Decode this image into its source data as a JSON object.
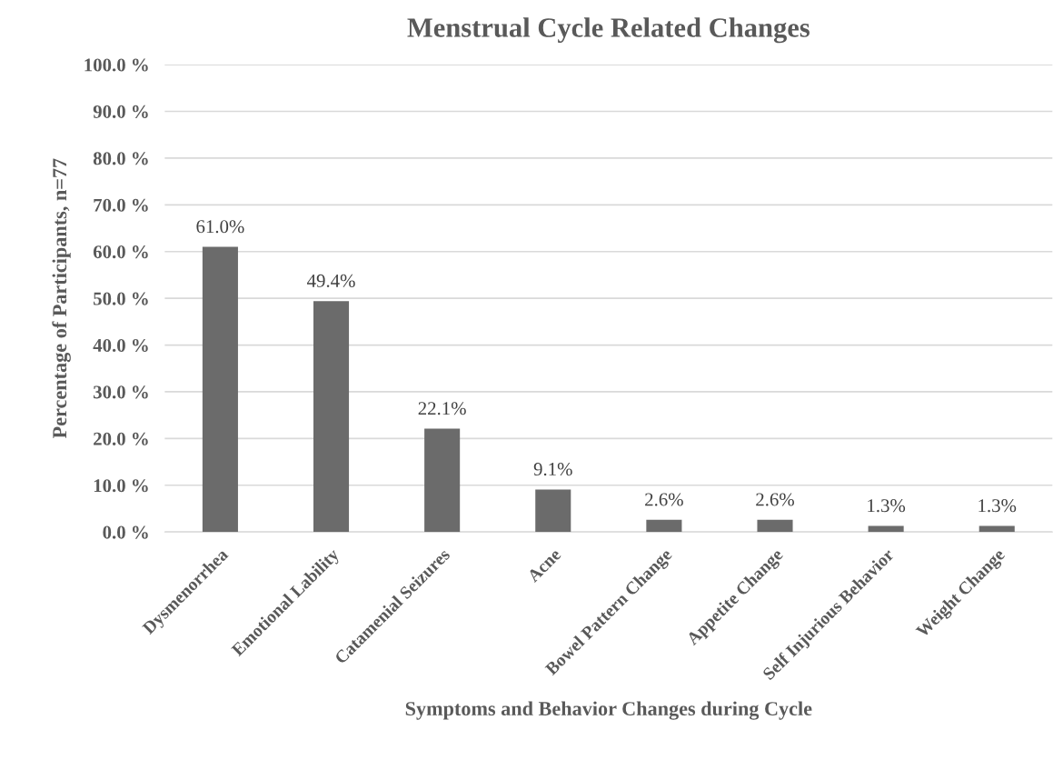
{
  "chart_data": {
    "type": "bar",
    "title": "Menstrual Cycle Related Changes",
    "xlabel": "Symptoms and Behavior Changes during Cycle",
    "ylabel": "Percentage of Participants, n=77",
    "categories": [
      "Dysmenorrhea",
      "Emotional Lability",
      "Catamenial Seizures",
      "Acne",
      "Bowel Pattern Change",
      "Appetite Change",
      "Self Injurious Behavior",
      "Weight Change"
    ],
    "values": [
      61.0,
      49.4,
      22.1,
      9.1,
      2.6,
      2.6,
      1.3,
      1.3
    ],
    "value_labels": [
      "61.0%",
      "49.4%",
      "22.1%",
      "9.1%",
      "2.6%",
      "2.6%",
      "1.3%",
      "1.3%"
    ],
    "color": "#6b6b6b",
    "ylim": [
      0,
      100
    ],
    "yticks": [
      {
        "value": 0,
        "label": "0.0 %"
      },
      {
        "value": 10,
        "label": "10.0 %"
      },
      {
        "value": 20,
        "label": "20.0 %"
      },
      {
        "value": 30,
        "label": "30.0 %"
      },
      {
        "value": 40,
        "label": "40.0 %"
      },
      {
        "value": 50,
        "label": "50.0 %"
      },
      {
        "value": 60,
        "label": "60.0 %"
      },
      {
        "value": 70,
        "label": "70.0 %"
      },
      {
        "value": 80,
        "label": "80.0 %"
      },
      {
        "value": 90,
        "label": "90.0 %"
      },
      {
        "value": 100,
        "label": "100.0 %"
      }
    ],
    "grid": "y"
  }
}
